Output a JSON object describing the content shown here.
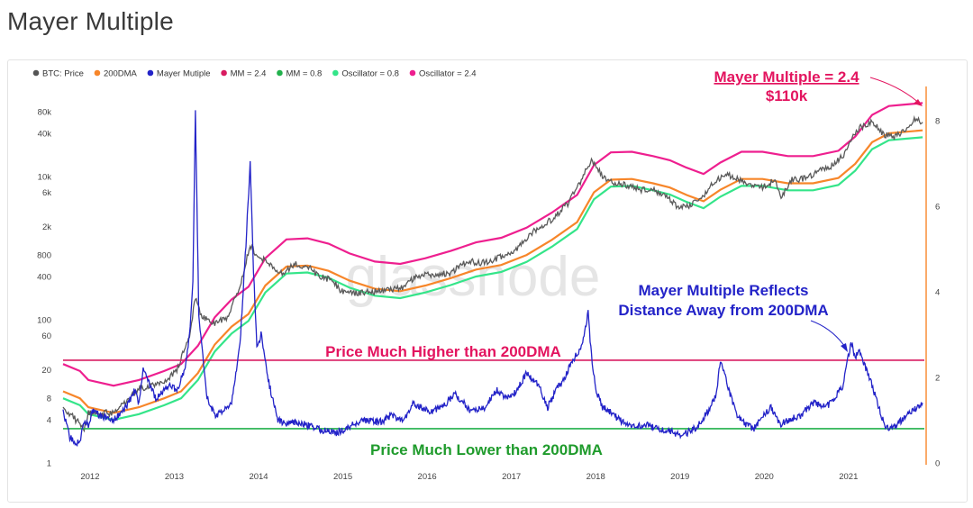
{
  "page": {
    "title": "Mayer Multiple"
  },
  "chart_data": {
    "type": "line",
    "watermark": "glassnode",
    "legend": [
      {
        "name": "BTC: Price",
        "color": "#555555"
      },
      {
        "name": "200DMA",
        "color": "#f7862a"
      },
      {
        "name": "Mayer Mutiple",
        "color": "#2323c8"
      },
      {
        "name": "MM = 2.4",
        "color": "#d81b60"
      },
      {
        "name": "MM = 0.8",
        "color": "#22b14c"
      },
      {
        "name": "Oscillator = 0.8",
        "color": "#34e589"
      },
      {
        "name": "Oscillator = 2.4",
        "color": "#ee1f8f"
      }
    ],
    "x_ticks": [
      "2012",
      "2013",
      "2014",
      "2015",
      "2016",
      "2017",
      "2018",
      "2019",
      "2020",
      "2021"
    ],
    "x_range": [
      2011.7,
      2021.92
    ],
    "y_left_ticks": [
      {
        "label": "1",
        "value": 1
      },
      {
        "label": "4",
        "value": 4
      },
      {
        "label": "8",
        "value": 8
      },
      {
        "label": "20",
        "value": 20
      },
      {
        "label": "60",
        "value": 60
      },
      {
        "label": "100",
        "value": 100
      },
      {
        "label": "400",
        "value": 400
      },
      {
        "label": "800",
        "value": 800
      },
      {
        "label": "2k",
        "value": 2000
      },
      {
        "label": "6k",
        "value": 6000
      },
      {
        "label": "10k",
        "value": 10000
      },
      {
        "label": "40k",
        "value": 40000
      },
      {
        "label": "80k",
        "value": 80000
      }
    ],
    "y_left_scale": "log",
    "y_left_range": [
      1,
      120000
    ],
    "y_right_ticks": [
      {
        "label": "0",
        "value": 0
      },
      {
        "label": "2",
        "value": 2
      },
      {
        "label": "4",
        "value": 4
      },
      {
        "label": "6",
        "value": 6
      },
      {
        "label": "8",
        "value": 8
      }
    ],
    "y_right_range": [
      0,
      8.5
    ],
    "mm_high": 2.4,
    "mm_low": 0.8,
    "price": {
      "x": [
        2011.7,
        2011.85,
        2011.95,
        2012.0,
        2012.15,
        2012.3,
        2012.45,
        2012.6,
        2012.75,
        2012.9,
        2013.05,
        2013.2,
        2013.27,
        2013.35,
        2013.5,
        2013.65,
        2013.8,
        2013.92,
        2014.0,
        2014.15,
        2014.3,
        2014.45,
        2014.6,
        2014.75,
        2014.9,
        2015.0,
        2015.15,
        2015.3,
        2015.45,
        2015.6,
        2015.75,
        2015.9,
        2016.1,
        2016.3,
        2016.5,
        2016.7,
        2016.9,
        2017.1,
        2017.3,
        2017.5,
        2017.7,
        2017.85,
        2017.97,
        2018.1,
        2018.25,
        2018.4,
        2018.55,
        2018.7,
        2018.85,
        2019.0,
        2019.15,
        2019.3,
        2019.45,
        2019.55,
        2019.7,
        2019.85,
        2020.0,
        2020.15,
        2020.22,
        2020.35,
        2020.5,
        2020.65,
        2020.8,
        2020.95,
        2021.05,
        2021.15,
        2021.3,
        2021.45,
        2021.55,
        2021.7,
        2021.8,
        2021.9
      ],
      "values": [
        6,
        4,
        3,
        5,
        5,
        5,
        7,
        11,
        12,
        13,
        20,
        60,
        200,
        110,
        90,
        110,
        300,
        1100,
        800,
        600,
        450,
        600,
        550,
        400,
        350,
        250,
        230,
        240,
        250,
        270,
        280,
        420,
        420,
        450,
        650,
        620,
        750,
        1000,
        1800,
        2500,
        4300,
        9000,
        17000,
        10000,
        8000,
        7500,
        6500,
        6500,
        5500,
        3700,
        3900,
        5500,
        9000,
        10500,
        9500,
        7500,
        7200,
        8800,
        5000,
        9000,
        9300,
        11500,
        13500,
        19000,
        32000,
        48000,
        57000,
        38000,
        35000,
        45000,
        61000,
        57000
      ]
    },
    "dma200": {
      "x": [
        2011.7,
        2011.9,
        2012.0,
        2012.3,
        2012.6,
        2012.9,
        2013.1,
        2013.3,
        2013.5,
        2013.7,
        2013.9,
        2014.1,
        2014.35,
        2014.6,
        2014.85,
        2015.1,
        2015.4,
        2015.7,
        2016.0,
        2016.3,
        2016.6,
        2016.9,
        2017.2,
        2017.5,
        2017.8,
        2018.0,
        2018.2,
        2018.45,
        2018.7,
        2018.9,
        2019.1,
        2019.3,
        2019.5,
        2019.75,
        2020.0,
        2020.3,
        2020.6,
        2020.9,
        2021.1,
        2021.3,
        2021.5,
        2021.7,
        2021.9
      ],
      "values": [
        10,
        8,
        6,
        5,
        6,
        8,
        10,
        18,
        45,
        80,
        120,
        300,
        550,
        570,
        480,
        350,
        270,
        250,
        300,
        380,
        500,
        580,
        800,
        1300,
        2300,
        6000,
        9000,
        9200,
        8000,
        7000,
        5500,
        4500,
        6500,
        9200,
        9200,
        8000,
        8000,
        9500,
        15000,
        30000,
        40000,
        42000,
        44000
      ]
    },
    "mayer_multiple": {
      "x": [
        2011.7,
        2011.78,
        2011.85,
        2011.9,
        2011.95,
        2012.0,
        2012.05,
        2012.15,
        2012.3,
        2012.45,
        2012.55,
        2012.6,
        2012.65,
        2012.8,
        2012.95,
        2013.05,
        2013.15,
        2013.2,
        2013.24,
        2013.27,
        2013.31,
        2013.4,
        2013.5,
        2013.6,
        2013.7,
        2013.8,
        2013.87,
        2013.92,
        2013.96,
        2014.0,
        2014.05,
        2014.15,
        2014.25,
        2014.35,
        2014.5,
        2014.65,
        2014.8,
        2014.95,
        2015.05,
        2015.15,
        2015.3,
        2015.45,
        2015.6,
        2015.75,
        2015.85,
        2015.95,
        2016.05,
        2016.2,
        2016.35,
        2016.45,
        2016.55,
        2016.7,
        2016.85,
        2016.95,
        2017.05,
        2017.2,
        2017.35,
        2017.45,
        2017.55,
        2017.65,
        2017.75,
        2017.85,
        2017.93,
        2017.97,
        2018.02,
        2018.1,
        2018.2,
        2018.3,
        2018.45,
        2018.6,
        2018.75,
        2018.9,
        2019.0,
        2019.1,
        2019.2,
        2019.35,
        2019.45,
        2019.5,
        2019.6,
        2019.7,
        2019.8,
        2019.9,
        2020.0,
        2020.1,
        2020.2,
        2020.3,
        2020.45,
        2020.6,
        2020.75,
        2020.85,
        2020.95,
        2021.0,
        2021.05,
        2021.1,
        2021.15,
        2021.25,
        2021.35,
        2021.45,
        2021.55,
        2021.65,
        2021.75,
        2021.85,
        2021.9
      ],
      "values": [
        1.2,
        0.6,
        0.45,
        0.5,
        1.0,
        0.9,
        1.2,
        1.1,
        1.0,
        1.3,
        1.7,
        1.4,
        2.2,
        1.5,
        1.8,
        1.7,
        2.2,
        3.0,
        4.2,
        8.2,
        3.5,
        1.6,
        1.1,
        1.2,
        1.4,
        2.8,
        5.1,
        7.0,
        4.5,
        2.7,
        3.0,
        1.8,
        1.0,
        0.9,
        0.95,
        0.85,
        0.75,
        0.7,
        0.8,
        0.9,
        1.0,
        0.95,
        1.1,
        1.0,
        1.4,
        1.3,
        1.2,
        1.3,
        1.6,
        1.4,
        1.2,
        1.3,
        1.7,
        1.5,
        1.6,
        2.1,
        1.8,
        1.3,
        1.7,
        2.0,
        2.4,
        2.7,
        3.5,
        2.5,
        1.7,
        1.3,
        1.2,
        1.0,
        0.85,
        0.9,
        0.8,
        0.75,
        0.65,
        0.7,
        0.8,
        1.2,
        1.6,
        2.4,
        1.7,
        1.1,
        0.9,
        0.8,
        1.1,
        1.3,
        0.9,
        1.0,
        1.1,
        1.4,
        1.3,
        1.5,
        1.8,
        2.3,
        2.8,
        2.5,
        2.6,
        2.1,
        1.5,
        0.85,
        0.8,
        1.0,
        1.2,
        1.3,
        1.4
      ]
    }
  },
  "annotations": {
    "mm24_line1": "Mayer Multiple = 2.4",
    "mm24_line2": "$110k",
    "higher": "Price Much Higher than 200DMA",
    "lower": "Price Much Lower than 200DMA",
    "reflects_line1": "Mayer Multiple Reflects",
    "reflects_line2": "Distance Away from 200DMA"
  }
}
